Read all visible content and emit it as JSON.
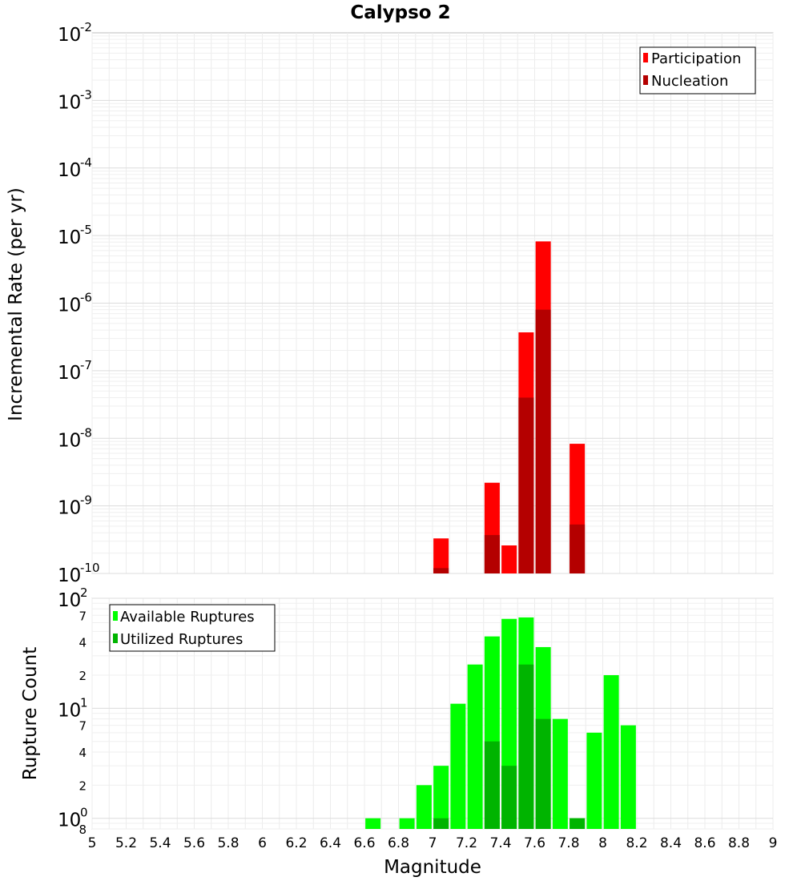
{
  "chart_data": [
    {
      "type": "bar",
      "title": "Calypso 2",
      "xlabel": "",
      "ylabel": "Incremental Rate (per yr)",
      "yscale": "log",
      "ylim": [
        1e-10,
        0.01
      ],
      "xlim": [
        5,
        9
      ],
      "grid": true,
      "legend_position": "top-right",
      "y_tick_labels": [
        {
          "base": "10",
          "exp": "-2",
          "value": 0.01
        },
        {
          "base": "10",
          "exp": "-3",
          "value": 0.001
        },
        {
          "base": "10",
          "exp": "-4",
          "value": 0.0001
        },
        {
          "base": "10",
          "exp": "-5",
          "value": 1e-05
        },
        {
          "base": "10",
          "exp": "-6",
          "value": 1e-06
        },
        {
          "base": "10",
          "exp": "-7",
          "value": 1e-07
        },
        {
          "base": "10",
          "exp": "-8",
          "value": 1e-08
        },
        {
          "base": "10",
          "exp": "-9",
          "value": 1e-09
        },
        {
          "base": "10",
          "exp": "-10",
          "value": 1e-10
        }
      ],
      "series": [
        {
          "name": "Participation",
          "color": "#ff0000",
          "x": [
            7.05,
            7.35,
            7.45,
            7.55,
            7.65,
            7.85
          ],
          "values": [
            3.3e-10,
            2.2e-09,
            2.6e-10,
            3.7e-07,
            8.2e-06,
            8.3e-09
          ]
        },
        {
          "name": "Nucleation",
          "color": "#b40000",
          "x": [
            7.05,
            7.35,
            7.55,
            7.65,
            7.85
          ],
          "values": [
            1.2e-10,
            3.7e-10,
            4e-08,
            8e-07,
            5.3e-10
          ]
        }
      ]
    },
    {
      "type": "bar",
      "title": "",
      "xlabel": "Magnitude",
      "ylabel": "Rupture Count",
      "yscale": "log",
      "ylim": [
        0.8,
        100
      ],
      "xlim": [
        5,
        9
      ],
      "grid": true,
      "legend_position": "top-left",
      "x_tick_labels": [
        "5",
        "5.2",
        "5.4",
        "5.6",
        "5.8",
        "6",
        "6.2",
        "6.4",
        "6.6",
        "6.8",
        "7",
        "7.2",
        "7.4",
        "7.6",
        "7.8",
        "8",
        "8.2",
        "8.4",
        "8.6",
        "8.8",
        "9"
      ],
      "y_tick_labels": [
        {
          "base": "10",
          "exp": "2",
          "value": 100
        },
        {
          "base": "10",
          "exp": "1",
          "value": 10
        },
        {
          "base": "10",
          "exp": "0",
          "value": 1
        }
      ],
      "y_minor_tick_labels": [
        {
          "label": "7",
          "value": 70
        },
        {
          "label": "4",
          "value": 40
        },
        {
          "label": "2",
          "value": 20
        },
        {
          "label": "7",
          "value": 7
        },
        {
          "label": "4",
          "value": 4
        },
        {
          "label": "2",
          "value": 2
        },
        {
          "label": "8",
          "value": 0.8
        }
      ],
      "series": [
        {
          "name": "Available Ruptures",
          "color": "#00ff00",
          "x": [
            6.65,
            6.85,
            6.95,
            7.05,
            7.15,
            7.25,
            7.35,
            7.45,
            7.55,
            7.65,
            7.75,
            7.85,
            7.95,
            8.05,
            8.15
          ],
          "values": [
            1,
            1,
            2,
            3,
            11,
            25,
            45,
            65,
            67,
            36,
            8,
            1,
            6,
            20,
            7
          ]
        },
        {
          "name": "Utilized Ruptures",
          "color": "#00b400",
          "x": [
            7.05,
            7.35,
            7.45,
            7.55,
            7.65,
            7.85
          ],
          "values": [
            1,
            5,
            3,
            25,
            8,
            1
          ]
        }
      ]
    }
  ]
}
